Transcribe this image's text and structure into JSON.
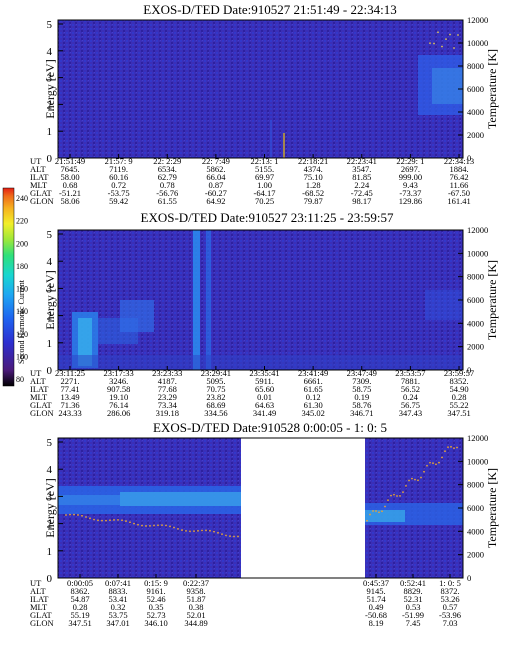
{
  "colorbar": {
    "label": "Second Harmonic Current",
    "ticks": [
      "240",
      "220",
      "200",
      "180",
      "160",
      "140",
      "120",
      "100",
      "80"
    ],
    "colors": [
      "#000000",
      "#4b1a7a",
      "#2d2fd0",
      "#1f63f0",
      "#1ea6f2",
      "#18d6d0",
      "#2fe07a",
      "#9ee83a",
      "#f2ef2a",
      "#f6b020",
      "#ef6a1a",
      "#e41f14"
    ]
  },
  "panels": [
    {
      "title": "EXOS-D/TED   Date:910527  21:51:49 - 22:34:13",
      "ylabel": "Energy [eV]",
      "y2label": "Temperature [K]",
      "yticks": [
        "0",
        "1",
        "2",
        "3",
        "4",
        "5"
      ],
      "y2ticks": [
        "0",
        "2000",
        "4000",
        "6000",
        "8000",
        "10000",
        "12000"
      ],
      "rowlabels": [
        "UT",
        "ALT",
        "ILAT",
        "MLT",
        "GLAT",
        "GLON"
      ],
      "cols": [
        [
          "21:51:49",
          "7645.",
          "58.00",
          "0.68",
          "-51.21",
          "58.06"
        ],
        [
          "21:57: 9",
          "7119.",
          "60.16",
          "0.72",
          "-53.75",
          "59.42"
        ],
        [
          "22: 2:29",
          "6534.",
          "62.79",
          "0.78",
          "-56.76",
          "61.55"
        ],
        [
          "22: 7:49",
          "5862.",
          "66.04",
          "0.87",
          "-60.27",
          "64.92"
        ],
        [
          "22:13: 1",
          "5155.",
          "69.97",
          "1.00",
          "-64.17",
          "70.25"
        ],
        [
          "22:18:21",
          "4374.",
          "75.10",
          "1.28",
          "-68.52",
          "79.87"
        ],
        [
          "22:23:41",
          "3547.",
          "81.85",
          "2.24",
          "-72.45",
          "98.17"
        ],
        [
          "22:29: 1",
          "2697.",
          "999.00",
          "9.43",
          "-73.37",
          "129.86"
        ],
        [
          "22:34:13",
          "1884.",
          "76.42",
          "11.66",
          "-67.50",
          "161.41"
        ]
      ]
    },
    {
      "title": "EXOS-D/TED   Date:910527  23:11:25 - 23:59:57",
      "ylabel": "Energy [eV]",
      "y2label": "Temperature [K]",
      "yticks": [
        "0",
        "1",
        "2",
        "3",
        "4",
        "5"
      ],
      "y2ticks": [
        "0",
        "2000",
        "4000",
        "6000",
        "8000",
        "10000",
        "12000"
      ],
      "rowlabels": [
        "UT",
        "ALT",
        "ILAT",
        "MLT",
        "GLAT",
        "GLON"
      ],
      "cols": [
        [
          "23:11:25",
          "2271.",
          "77.41",
          "13.49",
          "71.36",
          "243.33"
        ],
        [
          "23:17:33",
          "3246.",
          "907.58",
          "19.10",
          "76.14",
          "286.06"
        ],
        [
          "23:23:33",
          "4187.",
          "77.68",
          "23.29",
          "73.34",
          "319.18"
        ],
        [
          "23:29:41",
          "5095.",
          "70.75",
          "23.82",
          "68.69",
          "334.56"
        ],
        [
          "23:35:41",
          "5911.",
          "65.60",
          "0.01",
          "64.63",
          "341.49"
        ],
        [
          "23:41:49",
          "6661.",
          "61.65",
          "0.12",
          "61.30",
          "345.02"
        ],
        [
          "23:47:49",
          "7309.",
          "58.75",
          "0.19",
          "58.76",
          "346.71"
        ],
        [
          "23:53:57",
          "7881.",
          "56.52",
          "0.24",
          "56.75",
          "347.43"
        ],
        [
          "23:59:57",
          "8352.",
          "54.90",
          "0.28",
          "55.22",
          "347.51"
        ]
      ]
    },
    {
      "title": "EXOS-D/TED   Date:910528   0:00:05 -  1: 0: 5",
      "ylabel": "Energy [eV]",
      "y2label": "Temperature [K]",
      "yticks": [
        "0",
        "1",
        "2",
        "3",
        "4",
        "5"
      ],
      "y2ticks": [
        "0",
        "2000",
        "4000",
        "6000",
        "8000",
        "10000",
        "12000"
      ],
      "rowlabels": [
        "UT",
        "ALT",
        "ILAT",
        "MLT",
        "GLAT",
        "GLON"
      ],
      "cols": [
        [
          "0:00:05",
          "8362.",
          "54.87",
          "0.28",
          "55.19",
          "347.51"
        ],
        [
          "0:07:41",
          "8833.",
          "53.41",
          "0.32",
          "53.75",
          "347.01"
        ],
        [
          "0:15: 9",
          "9161.",
          "52.46",
          "0.35",
          "52.73",
          "346.10"
        ],
        [
          "0:22:37",
          "9358.",
          "51.87",
          "0.38",
          "52.01",
          "344.89"
        ],
        [
          "0:45:37",
          "9145.",
          "51.74",
          "0.49",
          "-50.68",
          "8.19"
        ],
        [
          "0:52:41",
          "8829.",
          "52.31",
          "0.53",
          "-51.99",
          "7.45"
        ],
        [
          "1: 0: 5",
          "8372.",
          "53.26",
          "0.57",
          "-53.96",
          "7.03"
        ]
      ]
    }
  ]
}
